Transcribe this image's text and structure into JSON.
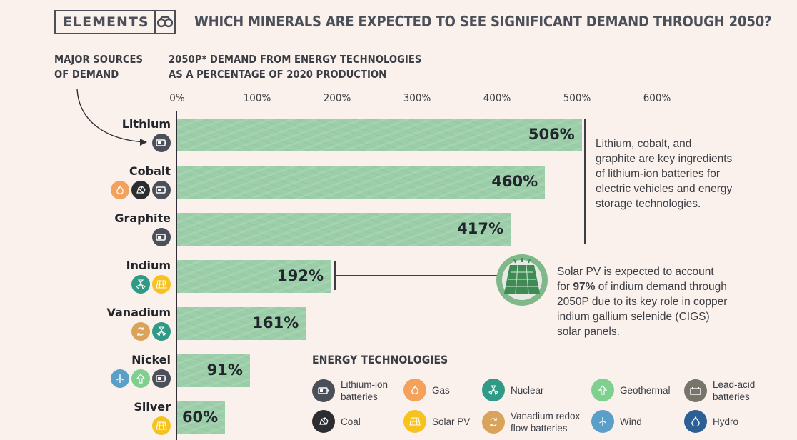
{
  "header": {
    "brand": "ELEMENTS",
    "title": "WHICH MINERALS ARE EXPECTED TO SEE SIGNIFICANT DEMAND THROUGH 2050?"
  },
  "labels": {
    "sources_line1": "MAJOR SOURCES",
    "sources_line2": "OF DEMAND",
    "axis_line1": "2050P* DEMAND FROM ENERGY TECHNOLOGIES",
    "axis_line2": "AS A PERCENTAGE OF 2020 PRODUCTION"
  },
  "chart_data": {
    "type": "bar",
    "orientation": "horizontal",
    "categories": [
      "Lithium",
      "Cobalt",
      "Graphite",
      "Indium",
      "Vanadium",
      "Nickel",
      "Silver"
    ],
    "values": [
      506,
      460,
      417,
      192,
      161,
      91,
      60
    ],
    "value_labels": [
      "506%",
      "460%",
      "417%",
      "192%",
      "161%",
      "91%",
      "60%"
    ],
    "xlim": [
      0,
      600
    ],
    "ticks": [
      "0%",
      "100%",
      "200%",
      "300%",
      "400%",
      "500%",
      "600%"
    ],
    "bar_color": "#9ccfa9",
    "grid": false
  },
  "demand_sources": {
    "Lithium": [
      "lithium-ion-batteries"
    ],
    "Cobalt": [
      "gas",
      "coal",
      "lithium-ion-batteries"
    ],
    "Graphite": [
      "lithium-ion-batteries"
    ],
    "Indium": [
      "nuclear",
      "solar-pv"
    ],
    "Vanadium": [
      "vanadium-redox-flow-batteries",
      "nuclear"
    ],
    "Nickel": [
      "wind",
      "geothermal",
      "lithium-ion-batteries"
    ],
    "Silver": [
      "solar-pv"
    ]
  },
  "notes": {
    "battery_note": [
      "Lithium, cobalt, and",
      "graphite are key ingredients",
      "of lithium-ion batteries for",
      "electric vehicles and energy",
      "storage technologies."
    ],
    "solar_line1": "Solar PV is expected to account",
    "solar_pre": "for ",
    "solar_bold": "97%",
    "solar_post": " of indium demand through",
    "solar_rest": [
      "2050P due to its key role in copper",
      "indium gallium selenide (CIGS)",
      "solar panels."
    ]
  },
  "legend": {
    "title": "ENERGY TECHNOLOGIES",
    "items": [
      {
        "key": "lithium-ion-batteries",
        "line1": "Lithium-ion",
        "line2": "batteries",
        "color": "#4a4f5a"
      },
      {
        "key": "gas",
        "line1": "Gas",
        "line2": "",
        "color": "#f4a15c"
      },
      {
        "key": "nuclear",
        "line1": "Nuclear",
        "line2": "",
        "color": "#2f9a86"
      },
      {
        "key": "geothermal",
        "line1": "Geothermal",
        "line2": "",
        "color": "#7fcf8f"
      },
      {
        "key": "lead-acid-batteries",
        "line1": "Lead-acid",
        "line2": "batteries",
        "color": "#77746a"
      },
      {
        "key": "coal",
        "line1": "Coal",
        "line2": "",
        "color": "#2c2d30"
      },
      {
        "key": "solar-pv",
        "line1": "Solar PV",
        "line2": "",
        "color": "#f6c21d"
      },
      {
        "key": "vanadium-redox-flow-batteries",
        "line1": "Vanadium redox",
        "line2": "flow batteries",
        "color": "#d9a35a"
      },
      {
        "key": "wind",
        "line1": "Wind",
        "line2": "",
        "color": "#5a9fc8"
      },
      {
        "key": "hydro",
        "line1": "Hydro",
        "line2": "",
        "color": "#2b5f95"
      }
    ]
  }
}
